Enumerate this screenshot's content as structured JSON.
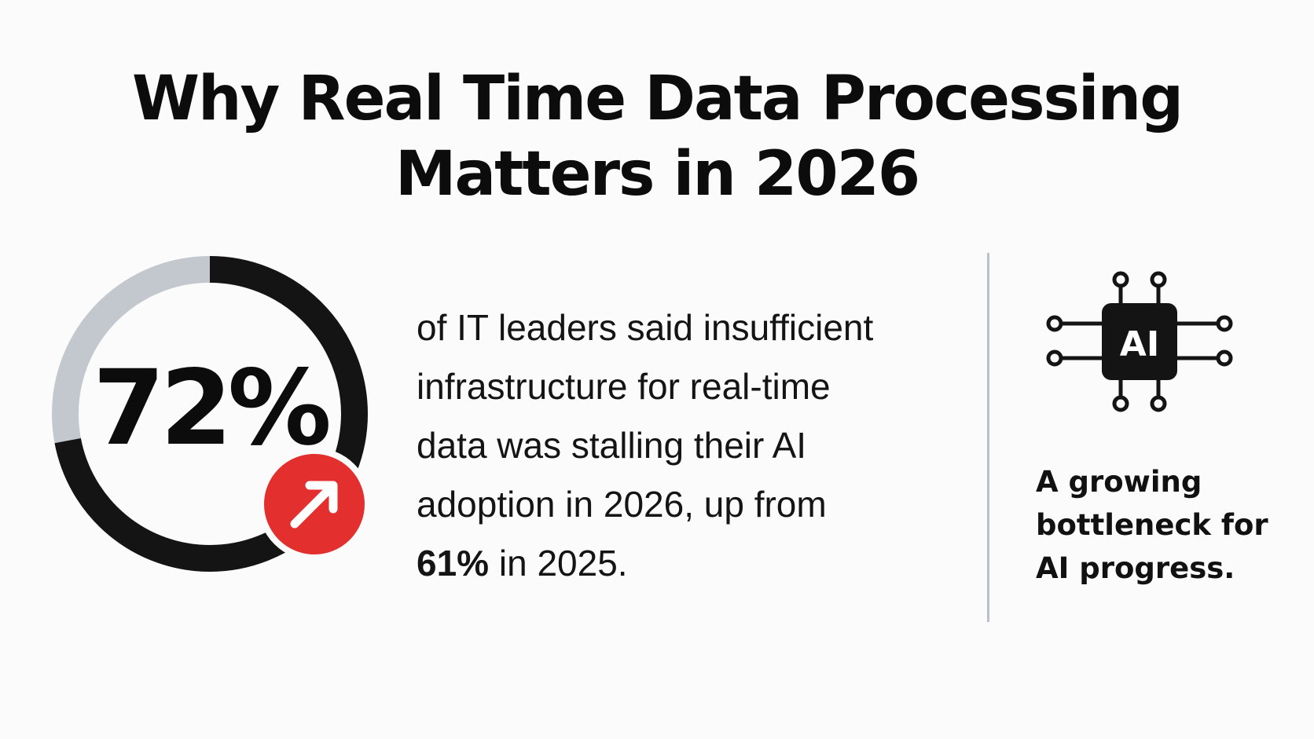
{
  "title": {
    "line1": "Why Real Time Data Processing",
    "line2": "Matters in 2026"
  },
  "stat": {
    "value": "72%",
    "fraction": 0.72,
    "track_color": "#c3c8ce",
    "fill_color": "#141414",
    "trend_color": "#e3302f",
    "trend_icon": "arrow-up-right-icon"
  },
  "description": {
    "line1": "of IT leaders said insufficient",
    "line2": "infrastructure for real-time",
    "line3": "data was stalling their AI",
    "line4": "adoption in 2026, up from",
    "highlight": "61%",
    "line5_rest": " in 2025."
  },
  "chip": {
    "icon": "ai-chip-icon",
    "label": "AI"
  },
  "tagline": {
    "line1": "A growing",
    "line2": "bottleneck for",
    "line3": "AI progress."
  }
}
